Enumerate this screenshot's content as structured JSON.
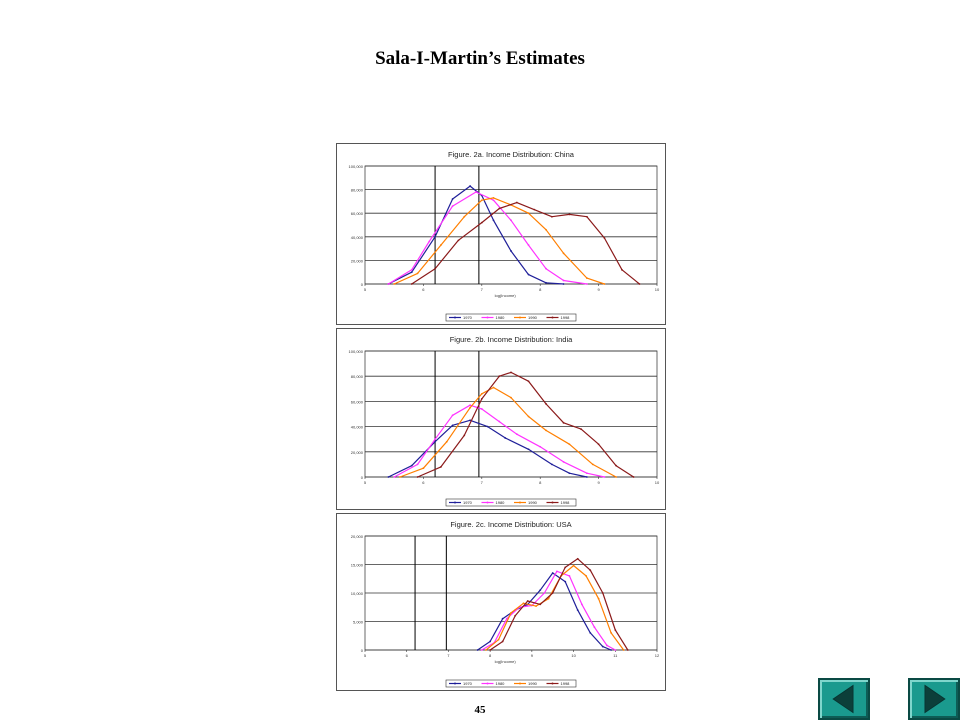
{
  "page": {
    "title": "Sala-I-Martin’s Estimates",
    "page_number": "45"
  },
  "navigation": {
    "prev_icon": "triangle-left-icon",
    "next_icon": "triangle-right-icon"
  },
  "chart_data": [
    {
      "type": "line",
      "title": "Figure. 2a. Income Distribution: China",
      "xlabel": "log(Income)",
      "ylabel": "",
      "xlim": [
        5,
        10
      ],
      "ylim": [
        0,
        100000
      ],
      "xticks": [
        "5",
        "6",
        "7",
        "8",
        "9",
        "10"
      ],
      "yticks": [
        "0",
        "20,000",
        "40,000",
        "60,000",
        "80,000",
        "100,000"
      ],
      "vlines": [
        6.2,
        6.95
      ],
      "grid": true,
      "legend": "bottom",
      "series": [
        {
          "name": "1970",
          "color": "#1f1f99",
          "x": [
            5.4,
            5.8,
            6.2,
            6.5,
            6.8,
            7.0,
            7.2,
            7.5,
            7.8,
            8.1,
            8.4
          ],
          "y": [
            0,
            10000,
            40000,
            72000,
            83000,
            75000,
            54000,
            28000,
            8000,
            1000,
            0
          ]
        },
        {
          "name": "1980",
          "color": "#ff33ff",
          "x": [
            5.4,
            5.8,
            6.1,
            6.5,
            6.9,
            7.2,
            7.5,
            7.8,
            8.1,
            8.4,
            8.8
          ],
          "y": [
            0,
            12000,
            36000,
            66000,
            78000,
            71000,
            54000,
            33000,
            13000,
            3000,
            0
          ]
        },
        {
          "name": "1990",
          "color": "#ff7f00",
          "x": [
            5.5,
            5.9,
            6.3,
            6.7,
            7.0,
            7.2,
            7.5,
            7.8,
            8.1,
            8.4,
            8.8,
            9.1
          ],
          "y": [
            0,
            9000,
            33000,
            57000,
            71000,
            73000,
            67000,
            60000,
            46000,
            26000,
            5000,
            0
          ]
        },
        {
          "name": "1998",
          "color": "#8b1a1a",
          "x": [
            5.8,
            6.2,
            6.6,
            7.0,
            7.3,
            7.6,
            7.9,
            8.2,
            8.5,
            8.8,
            9.1,
            9.4,
            9.7
          ],
          "y": [
            0,
            13000,
            37000,
            52000,
            64000,
            69000,
            63000,
            57000,
            59000,
            57000,
            39000,
            12000,
            0
          ]
        }
      ]
    },
    {
      "type": "line",
      "title": "Figure. 2b. Income Distribution: India",
      "xlabel": "",
      "ylabel": "",
      "xlim": [
        5,
        10
      ],
      "ylim": [
        0,
        100000
      ],
      "xticks": [
        "5",
        "6",
        "7",
        "8",
        "9",
        "10"
      ],
      "yticks": [
        "0",
        "20,000",
        "40,000",
        "60,000",
        "80,000",
        "100,000"
      ],
      "vlines": [
        6.2,
        6.95
      ],
      "grid": true,
      "legend": "bottom",
      "series": [
        {
          "name": "1970",
          "color": "#1f1f99",
          "x": [
            5.4,
            5.8,
            6.2,
            6.5,
            6.8,
            7.1,
            7.4,
            7.8,
            8.2,
            8.5,
            8.8
          ],
          "y": [
            0,
            9000,
            28000,
            41000,
            45000,
            40000,
            31000,
            22000,
            10000,
            3000,
            0
          ]
        },
        {
          "name": "1980",
          "color": "#ff33ff",
          "x": [
            5.5,
            5.9,
            6.2,
            6.5,
            6.8,
            7.0,
            7.3,
            7.6,
            8.0,
            8.4,
            8.8,
            9.1
          ],
          "y": [
            0,
            10000,
            30000,
            49000,
            57000,
            54000,
            44000,
            34000,
            24000,
            12000,
            3000,
            0
          ]
        },
        {
          "name": "1990",
          "color": "#ff7f00",
          "x": [
            5.6,
            6.0,
            6.4,
            6.8,
            7.0,
            7.2,
            7.5,
            7.8,
            8.1,
            8.5,
            8.9,
            9.3
          ],
          "y": [
            0,
            7000,
            28000,
            55000,
            66000,
            71000,
            63000,
            48000,
            37000,
            26000,
            10000,
            0
          ]
        },
        {
          "name": "1998",
          "color": "#8b1a1a",
          "x": [
            5.9,
            6.3,
            6.7,
            7.0,
            7.3,
            7.5,
            7.8,
            8.1,
            8.4,
            8.7,
            9.0,
            9.3,
            9.6
          ],
          "y": [
            0,
            8000,
            33000,
            62000,
            80000,
            83000,
            76000,
            58000,
            43000,
            38000,
            26000,
            9000,
            0
          ]
        }
      ]
    },
    {
      "type": "line",
      "title": "Figure. 2c. Income Distribution: USA",
      "xlabel": "log(Income)",
      "ylabel": "",
      "xlim": [
        5,
        12
      ],
      "ylim": [
        0,
        20000
      ],
      "xticks": [
        "5",
        "6",
        "7",
        "8",
        "9",
        "10",
        "11",
        "12"
      ],
      "yticks": [
        "0",
        "5,000",
        "10,000",
        "15,000",
        "20,000"
      ],
      "vlines": [
        6.2,
        6.95
      ],
      "grid": true,
      "legend": "bottom",
      "series": [
        {
          "name": "1970",
          "color": "#1f1f99",
          "x": [
            7.7,
            8.0,
            8.3,
            8.6,
            8.9,
            9.2,
            9.5,
            9.8,
            10.1,
            10.4,
            10.7,
            10.9
          ],
          "y": [
            0,
            1500,
            5500,
            7000,
            8000,
            10500,
            13500,
            12000,
            7000,
            3000,
            600,
            0
          ]
        },
        {
          "name": "1980",
          "color": "#ff33ff",
          "x": [
            7.8,
            8.1,
            8.4,
            8.7,
            9.0,
            9.3,
            9.6,
            9.9,
            10.2,
            10.5,
            10.8,
            11.0
          ],
          "y": [
            0,
            1300,
            5500,
            7500,
            7800,
            10000,
            13800,
            13000,
            8000,
            4000,
            800,
            0
          ]
        },
        {
          "name": "1990",
          "color": "#ff7f00",
          "x": [
            7.9,
            8.2,
            8.5,
            8.8,
            9.1,
            9.4,
            9.7,
            10.0,
            10.3,
            10.6,
            10.9,
            11.2
          ],
          "y": [
            0,
            1800,
            6500,
            8200,
            7700,
            9000,
            13000,
            14800,
            13000,
            9000,
            3000,
            0
          ]
        },
        {
          "name": "1998",
          "color": "#8b1a1a",
          "x": [
            8.0,
            8.3,
            8.6,
            8.9,
            9.2,
            9.5,
            9.8,
            10.1,
            10.4,
            10.7,
            11.0,
            11.3
          ],
          "y": [
            0,
            1500,
            6000,
            8600,
            8000,
            10000,
            14500,
            16000,
            14000,
            10000,
            3500,
            0
          ]
        }
      ]
    }
  ]
}
